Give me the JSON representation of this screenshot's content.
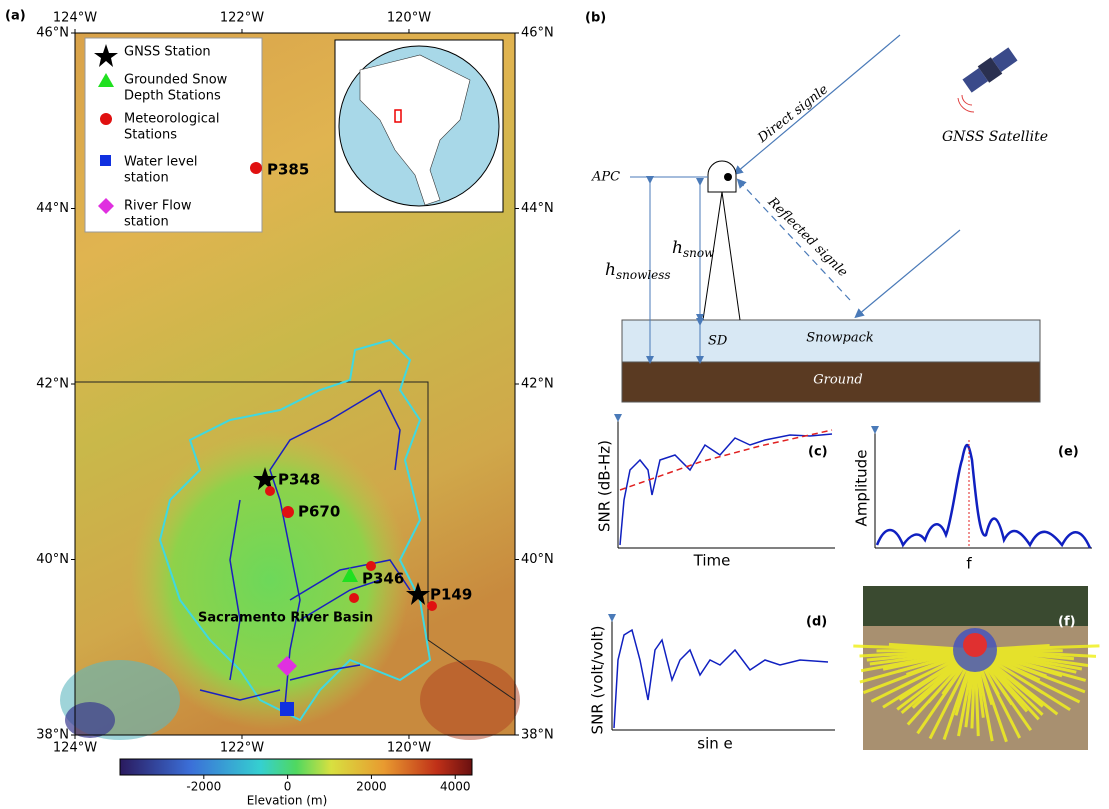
{
  "panel_a": {
    "label": "(a)",
    "lon_ticks": [
      {
        "value": -124,
        "label": "124°W"
      },
      {
        "value": -122,
        "label": "122°W"
      },
      {
        "value": -120,
        "label": "120°W"
      }
    ],
    "lat_ticks": [
      {
        "value": 46,
        "label": "46°N"
      },
      {
        "value": 44,
        "label": "44°N"
      },
      {
        "value": 42,
        "label": "42°N"
      },
      {
        "value": 40,
        "label": "40°N"
      },
      {
        "value": 38,
        "label": "38°N"
      }
    ],
    "xlim": [
      -124,
      -118.73
    ],
    "ylim": [
      38,
      46
    ],
    "legend": [
      {
        "lines": [
          "GNSS Station"
        ]
      },
      {
        "lines": [
          "Grounded Snow",
          "Depth Stations"
        ]
      },
      {
        "lines": [
          "Meteorological",
          "Stations"
        ]
      },
      {
        "lines": [
          "Water level",
          "station"
        ]
      },
      {
        "lines": [
          "River Flow",
          "station"
        ]
      }
    ],
    "stations": [
      "P385",
      "P348",
      "P670",
      "P346",
      "P149"
    ],
    "basin_label": "Sacramento River Basin",
    "colorbar": {
      "lim": [
        -4000,
        4400
      ],
      "ticks": [
        -2000,
        0,
        2000,
        4000
      ],
      "label": "Elevation (m)"
    }
  },
  "panel_b": {
    "label": "(b)",
    "direct": "Direct signle",
    "satellite": "GNSS Satellite",
    "apc": "APC",
    "reflected": "Reflected signle",
    "h_snow": {
      "symbol": "h",
      "subscript": "snow"
    },
    "h_snowless": {
      "symbol": "h",
      "subscript": "snowless"
    },
    "sd": "SD",
    "snowpack": "Snowpack",
    "ground": "Ground"
  },
  "panel_c": {
    "label": "(c)",
    "ylabel": "SNR (dB-Hz)",
    "xlabel": "Time"
  },
  "panel_d": {
    "label": "(d)",
    "ylabel": "SNR (volt/volt)",
    "xlabel": "sin e"
  },
  "panel_e": {
    "label": "(e)",
    "ylabel": "Amplitude",
    "xlabel": "f"
  },
  "panel_f": {
    "label": "(f)"
  }
}
